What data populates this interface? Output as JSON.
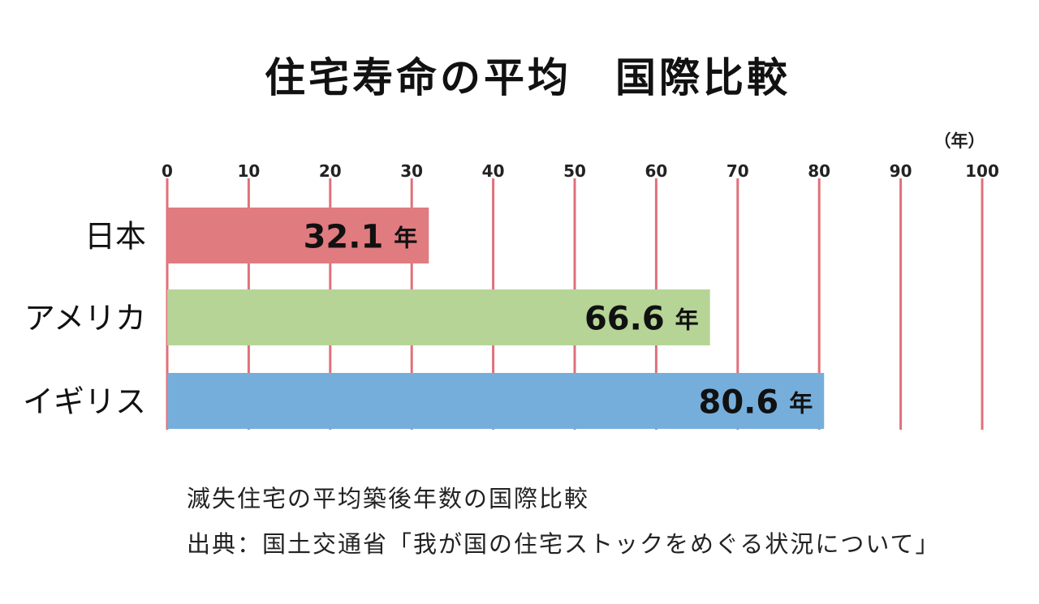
{
  "title": "住宅寿命の平均　国際比較",
  "chart_data": {
    "type": "bar",
    "orientation": "horizontal",
    "unit_label": "（年）",
    "xlim": [
      0,
      100
    ],
    "ticks": [
      "0",
      "10",
      "20",
      "30",
      "40",
      "50",
      "60",
      "70",
      "80",
      "90",
      "100"
    ],
    "grid": true,
    "gridline_color": "#e0707a",
    "categories": [
      "日本",
      "アメリカ",
      "イギリス"
    ],
    "values": [
      32.1,
      66.6,
      80.6
    ],
    "value_labels": [
      "32.1",
      "66.6",
      "80.6"
    ],
    "value_suffix": "年",
    "colors": [
      "#e07b80",
      "#b5d496",
      "#76aedb"
    ]
  },
  "notes": [
    "滅失住宅の平均築後年数の国際比較",
    "出典：国土交通省「我が国の住宅ストックをめぐる状況について」"
  ]
}
